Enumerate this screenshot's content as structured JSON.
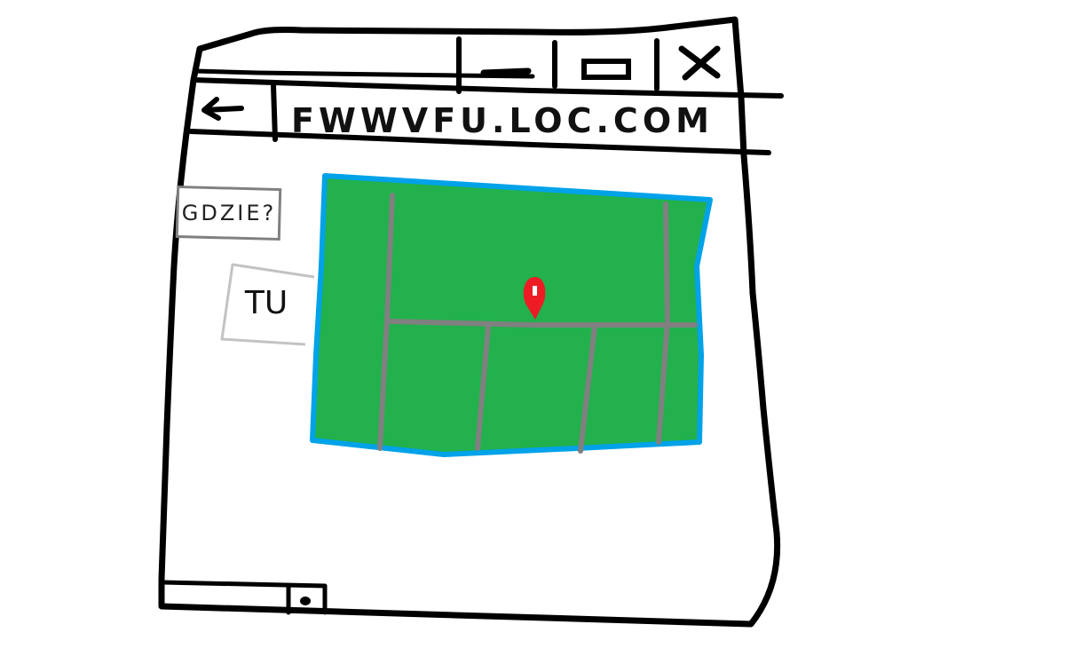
{
  "window": {
    "controls": {
      "minimize": "minimize-icon",
      "maximize": "maximize-icon",
      "close": "close-icon"
    }
  },
  "toolbar": {
    "back": "back-arrow-icon",
    "address": "FWWVFU.LOC.COM"
  },
  "sidebar": {
    "question_label": "GDZIE?",
    "answer_field": "TU"
  },
  "map": {
    "land_color": "#22b14c",
    "road_color": "#808080",
    "border_color": "#00a2e8",
    "marker": "map-pin-icon",
    "marker_color": "#ed1c24"
  },
  "footer": {
    "scroll_thumb": "scroll-thumb-icon"
  }
}
